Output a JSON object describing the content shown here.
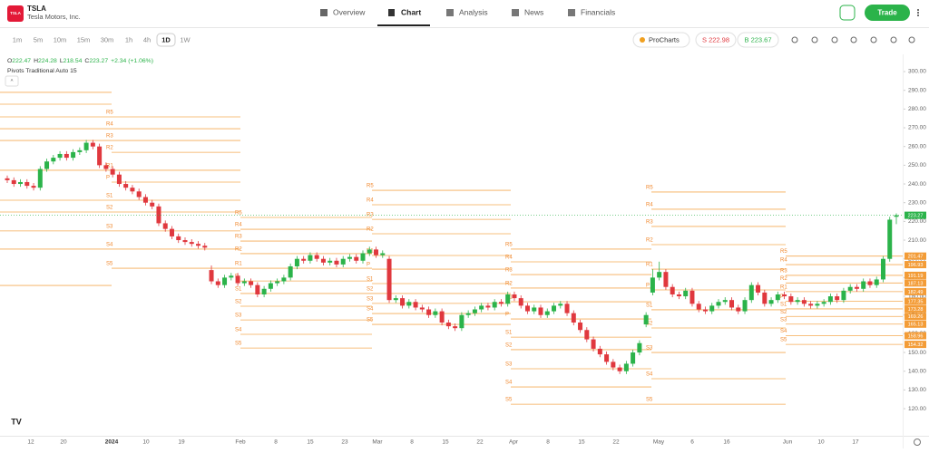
{
  "header": {
    "logo": "TSLA",
    "ticker": "TSLA",
    "company": "Tesla Motors, Inc.",
    "tabs": [
      "Overview",
      "Chart",
      "Analysis",
      "News",
      "Financials"
    ],
    "trade": "Trade"
  },
  "toolbar": {
    "timeframes": [
      "1m",
      "5m",
      "10m",
      "15m",
      "30m",
      "1h",
      "4h",
      "1D",
      "1W"
    ],
    "procharts": "ProCharts",
    "sell": "S 222.98",
    "buy": "B 223.67"
  },
  "chart_data": {
    "type": "candlestick",
    "ohlc_keys": [
      "O",
      "H",
      "L",
      "C"
    ],
    "change": "+2.34 (+1.06%)",
    "indicator": "Pivots Traditional Auto 15",
    "up_color": "#2bb34a",
    "down_color": "#e0383e",
    "pivot_color": "#f39c37",
    "ylim": [
      106,
      309.2
    ],
    "yticks": [
      {
        "value": 300,
        "label": "300.00"
      },
      {
        "value": 290,
        "label": "290.00"
      },
      {
        "value": 280,
        "label": "280.00"
      },
      {
        "value": 270,
        "label": "270.00"
      },
      {
        "value": 260,
        "label": "260.00"
      },
      {
        "value": 250,
        "label": "250.00"
      },
      {
        "value": 240,
        "label": "240.00"
      },
      {
        "value": 230,
        "label": "230.00"
      },
      {
        "value": 220,
        "label": "220.00"
      },
      {
        "value": 210,
        "label": "210.00"
      },
      {
        "value": 200,
        "label": "200.00"
      },
      {
        "value": 190,
        "label": "190.00"
      },
      {
        "value": 180,
        "label": "180.00"
      },
      {
        "value": 170,
        "label": "170.00"
      },
      {
        "value": 160,
        "label": "160.00"
      },
      {
        "value": 150,
        "label": "150.00"
      },
      {
        "value": 140,
        "label": "140.00"
      },
      {
        "value": 130,
        "label": "130.00"
      },
      {
        "value": 120,
        "label": "120.00"
      }
    ],
    "time_labels": [
      "12",
      "20",
      "2024",
      "10",
      "19",
      "Feb",
      "8",
      "15",
      "23",
      "Mar",
      "8",
      "15",
      "22",
      "Apr",
      "8",
      "15",
      "22",
      "May",
      "6",
      "16",
      "Jun",
      "10",
      "17"
    ],
    "pivot_labels": [
      "R5",
      "R4",
      "R3",
      "R2",
      "R1",
      "P",
      "S1",
      "S2",
      "S3",
      "S4",
      "S5"
    ],
    "pivots": [
      [
        288.9,
        282.6,
        275.8,
        269.5,
        263.2,
        247.3,
        231.3,
        225.0,
        214.9,
        205.2,
        185.8
      ],
      [
        275.8,
        269.5,
        263.2,
        256.9,
        247.3,
        241.0,
        231.3,
        225.0,
        214.9,
        205.2,
        195.0
      ],
      [
        222.1,
        215.8,
        209.5,
        202.8,
        195.0,
        188.2,
        181.5,
        174.7,
        167.4,
        159.7,
        152.4
      ],
      [
        236.6,
        228.9,
        221.1,
        213.4,
        201.8,
        194.5,
        186.8,
        181.5,
        176.2,
        170.8,
        165.0
      ],
      [
        205.2,
        198.4,
        191.6,
        184.4,
        177.1,
        167.9,
        158.2,
        151.5,
        141.3,
        131.6,
        122.4
      ],
      [
        235.7,
        226.5,
        217.3,
        207.6,
        194.5,
        183.4,
        172.8,
        163.1,
        150.0,
        136.0,
        122.4
      ],
      [
        201.47,
        196.93,
        191.19,
        187.13,
        182.49,
        177.35,
        173.28,
        169.26,
        165.13,
        158.96,
        154.32
      ]
    ],
    "ohlc": [
      [
        243,
        244.5,
        240.5,
        242
      ],
      [
        242,
        243.5,
        238.5,
        240
      ],
      [
        240,
        242.5,
        238.5,
        241
      ],
      [
        241,
        242.5,
        237.5,
        239
      ],
      [
        239,
        240.5,
        236.5,
        238
      ],
      [
        238,
        249.5,
        236.5,
        248
      ],
      [
        248,
        253.5,
        246.5,
        252
      ],
      [
        252,
        255.5,
        250.5,
        254
      ],
      [
        254,
        257.5,
        252.5,
        256
      ],
      [
        256,
        257.5,
        252.5,
        254
      ],
      [
        254,
        258.5,
        252.5,
        257
      ],
      [
        257,
        259.5,
        255.5,
        258
      ],
      [
        258,
        263.5,
        256.5,
        262
      ],
      [
        262,
        263.5,
        258.5,
        260
      ],
      [
        260,
        261.5,
        248.5,
        250
      ],
      [
        250,
        251.5,
        246.5,
        248
      ],
      [
        248,
        249.5,
        243.5,
        245
      ],
      [
        245,
        246.5,
        238.5,
        240
      ],
      [
        240,
        241.5,
        236.5,
        238
      ],
      [
        238,
        239.5,
        234.5,
        236
      ],
      [
        236,
        237.5,
        231.5,
        233
      ],
      [
        233,
        234.5,
        228.5,
        230
      ],
      [
        230,
        231.5,
        226.5,
        228
      ],
      [
        228,
        229.5,
        217.5,
        219
      ],
      [
        219,
        220.5,
        214.5,
        216
      ],
      [
        216,
        217.5,
        210.5,
        212
      ],
      [
        212,
        213.5,
        208.5,
        210
      ],
      [
        210,
        211.5,
        207.5,
        209
      ],
      [
        209,
        210.5,
        206.5,
        208
      ],
      [
        208,
        209.5,
        205.5,
        207
      ],
      [
        207,
        208.5,
        204.5,
        206
      ],
      [
        194,
        196.5,
        186.5,
        188
      ],
      [
        188,
        189.5,
        184.5,
        186
      ],
      [
        186,
        191.5,
        184.5,
        190
      ],
      [
        190,
        192.5,
        188.5,
        191
      ],
      [
        191,
        192.5,
        185.5,
        187
      ],
      [
        187,
        189.5,
        185.5,
        188
      ],
      [
        188,
        189.5,
        184.5,
        186
      ],
      [
        186,
        187.5,
        179.5,
        181
      ],
      [
        181,
        185.5,
        179.5,
        184
      ],
      [
        184,
        188.5,
        182.5,
        187
      ],
      [
        187,
        189.5,
        185.5,
        188
      ],
      [
        188,
        191.5,
        186.5,
        190
      ],
      [
        190,
        197.5,
        188.5,
        196
      ],
      [
        196,
        201.5,
        194.5,
        200
      ],
      [
        200,
        201.5,
        197.5,
        199
      ],
      [
        199,
        203.5,
        197.5,
        202
      ],
      [
        202,
        203.5,
        198.5,
        200
      ],
      [
        200,
        201.5,
        196.5,
        198
      ],
      [
        198,
        200.5,
        196.5,
        199
      ],
      [
        199,
        200.5,
        195.5,
        197
      ],
      [
        197,
        201.5,
        195.5,
        200
      ],
      [
        200,
        202.5,
        198.5,
        201
      ],
      [
        201,
        202.5,
        197.5,
        199
      ],
      [
        199,
        204.5,
        197.5,
        203
      ],
      [
        203,
        206.5,
        201.5,
        205
      ],
      [
        205,
        206.5,
        200.5,
        202
      ],
      [
        202,
        204.5,
        200.5,
        203
      ],
      [
        200,
        201.5,
        176.5,
        178
      ],
      [
        178,
        180.5,
        176.5,
        179
      ],
      [
        179,
        180.5,
        173.5,
        175
      ],
      [
        175,
        178.5,
        173.5,
        177
      ],
      [
        177,
        178.5,
        172.5,
        174
      ],
      [
        174,
        175.5,
        171.5,
        173
      ],
      [
        173,
        174.5,
        168.5,
        170
      ],
      [
        170,
        173.5,
        168.5,
        172
      ],
      [
        172,
        173.5,
        164.5,
        166
      ],
      [
        166,
        167.5,
        162.5,
        164
      ],
      [
        164,
        165.5,
        161.5,
        163
      ],
      [
        163,
        171.5,
        161.5,
        170
      ],
      [
        170,
        172.5,
        168.5,
        171
      ],
      [
        171,
        174.5,
        169.5,
        173
      ],
      [
        173,
        176.5,
        171.5,
        175
      ],
      [
        175,
        176.5,
        172.5,
        174
      ],
      [
        174,
        178.5,
        172.5,
        177
      ],
      [
        177,
        178.5,
        174.5,
        176
      ],
      [
        176,
        182.5,
        174.5,
        181
      ],
      [
        181,
        182.5,
        177.5,
        179
      ],
      [
        179,
        180.5,
        173.5,
        175
      ],
      [
        175,
        176.5,
        170.5,
        172
      ],
      [
        172,
        175.5,
        170.5,
        174
      ],
      [
        174,
        175.5,
        168.5,
        170
      ],
      [
        170,
        173.5,
        168.5,
        172
      ],
      [
        172,
        176.5,
        170.5,
        175
      ],
      [
        175,
        177.5,
        173.5,
        176
      ],
      [
        176,
        177.5,
        169.5,
        171
      ],
      [
        171,
        172.5,
        164.5,
        166
      ],
      [
        166,
        167.5,
        160.5,
        162
      ],
      [
        162,
        163.5,
        155.5,
        157
      ],
      [
        157,
        158.5,
        150.5,
        152
      ],
      [
        152,
        153.5,
        147.5,
        149
      ],
      [
        149,
        150.5,
        143.5,
        145
      ],
      [
        145,
        146.5,
        140.5,
        142
      ],
      [
        142,
        143.5,
        138.5,
        140
      ],
      [
        140,
        145.5,
        138.5,
        144
      ],
      [
        144,
        151.5,
        142.5,
        150
      ],
      [
        150,
        156.5,
        148.5,
        155
      ],
      [
        165,
        171.5,
        163.5,
        170
      ],
      [
        182,
        194.5,
        180.5,
        190
      ],
      [
        190,
        198.5,
        188.5,
        193
      ],
      [
        193,
        194.5,
        183.5,
        185
      ],
      [
        185,
        186.5,
        179.5,
        181
      ],
      [
        181,
        182.5,
        178.5,
        180
      ],
      [
        180,
        184.5,
        178.5,
        183
      ],
      [
        183,
        184.5,
        174.5,
        176
      ],
      [
        176,
        177.5,
        171.5,
        173
      ],
      [
        173,
        174.5,
        170.5,
        172
      ],
      [
        172,
        176.5,
        170.5,
        175
      ],
      [
        175,
        178.5,
        173.5,
        177
      ],
      [
        177,
        179.5,
        175.5,
        178
      ],
      [
        178,
        179.5,
        172.5,
        174
      ],
      [
        174,
        175.5,
        170.5,
        172
      ],
      [
        172,
        179.5,
        170.5,
        178
      ],
      [
        178,
        187.5,
        176.5,
        186
      ],
      [
        186,
        187.5,
        180.5,
        182
      ],
      [
        182,
        183.5,
        174.5,
        176
      ],
      [
        176,
        179.5,
        174.5,
        178
      ],
      [
        178,
        182.5,
        176.5,
        181
      ],
      [
        181,
        182.5,
        178.5,
        180
      ],
      [
        180,
        181.5,
        175.5,
        177
      ],
      [
        177,
        179.5,
        175.5,
        178
      ],
      [
        178,
        179.5,
        174.5,
        176
      ],
      [
        176,
        177.5,
        173.5,
        175
      ],
      [
        175,
        177.5,
        173.5,
        176
      ],
      [
        176,
        178.5,
        174.5,
        177
      ],
      [
        177,
        181.5,
        175.5,
        180
      ],
      [
        180,
        181.5,
        176.5,
        178
      ],
      [
        178,
        184.5,
        176.5,
        183
      ],
      [
        183,
        186.5,
        181.5,
        185
      ],
      [
        185,
        186.5,
        182.5,
        184
      ],
      [
        184,
        189.5,
        182.5,
        188
      ],
      [
        188,
        189.5,
        184.5,
        186
      ],
      [
        186,
        190.5,
        184.5,
        189
      ],
      [
        189,
        201.5,
        187.5,
        200
      ],
      [
        200,
        222.5,
        198.5,
        220.93
      ],
      [
        222.47,
        224.28,
        218.54,
        223.27
      ]
    ]
  }
}
